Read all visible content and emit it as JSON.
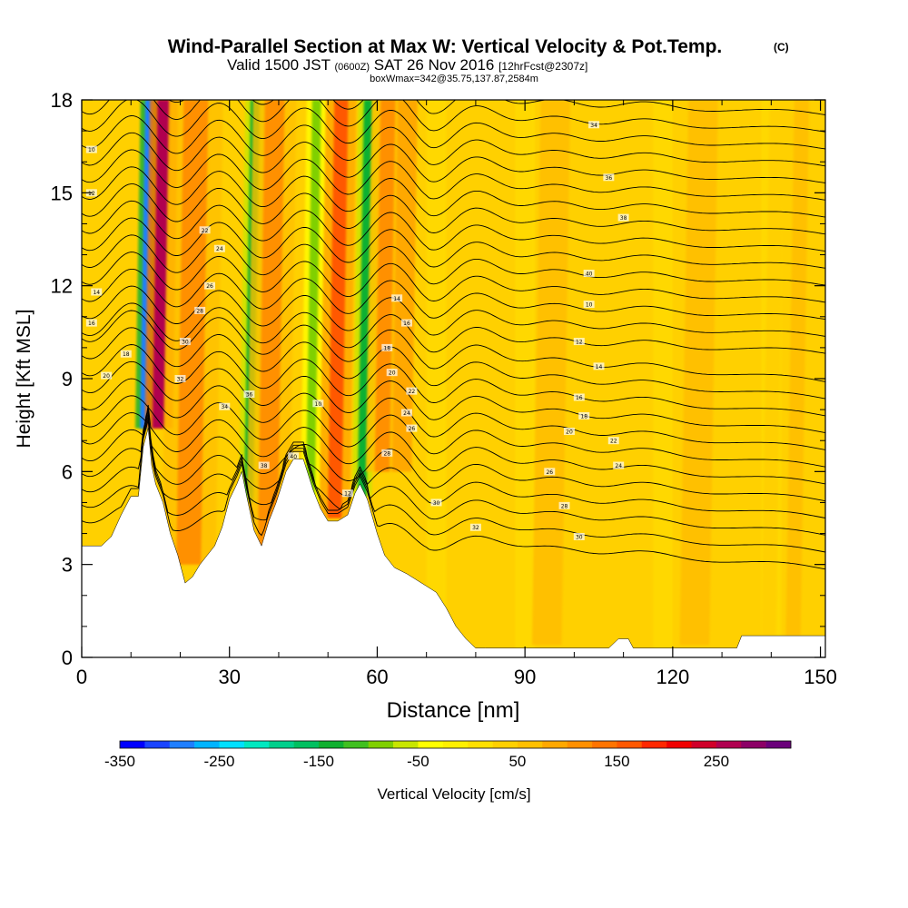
{
  "chart_data": {
    "type": "heatmap",
    "title": "Wind-Parallel Section at Max W: Vertical Velocity & Pot.Temp.",
    "title_mark": "(C)",
    "subtitle": {
      "prefix": "Valid 1500 JST",
      "utc": "(0600Z)",
      "date": "SAT 26 Nov 2016",
      "fcst": "[12hrFcst@2307z]"
    },
    "box_line": "boxWmax=342@35.75,137.87,2584m",
    "xlabel": "Distance [nm]",
    "ylabel": "Height [Kft MSL]",
    "xlim": [
      0,
      151
    ],
    "ylim": [
      0,
      18
    ],
    "x_ticks": [
      0,
      30,
      60,
      90,
      120,
      150
    ],
    "y_ticks": [
      0,
      3,
      6,
      9,
      12,
      15,
      18
    ],
    "background_w": 40,
    "plumes": [
      {
        "x": 12.5,
        "w": -300,
        "width": 1.6,
        "bottom": 7.4
      },
      {
        "x": 15.5,
        "w": 270,
        "width": 2.6,
        "bottom": 7.4
      },
      {
        "x": 22,
        "w": 110,
        "width": 5,
        "bottom": 3.0
      },
      {
        "x": 34,
        "w": -130,
        "width": 1.8,
        "bottom": 5.0
      },
      {
        "x": 38,
        "w": 120,
        "width": 4,
        "bottom": 3.5
      },
      {
        "x": 46.5,
        "w": -100,
        "width": 1.8,
        "bottom": 4.5
      },
      {
        "x": 51.5,
        "w": 170,
        "width": 2.8,
        "bottom": 4.5
      },
      {
        "x": 57,
        "w": -150,
        "width": 1.8,
        "bottom": 5.2
      },
      {
        "x": 61,
        "w": 110,
        "width": 3,
        "bottom": 6.0
      },
      {
        "x": 65,
        "w": 80,
        "width": 4,
        "bottom": 6.0
      },
      {
        "x": 95,
        "w": 60,
        "width": 6,
        "bottom": 0.4
      },
      {
        "x": 125,
        "w": 60,
        "width": 6,
        "bottom": 0.4
      },
      {
        "x": 140,
        "w": 30,
        "width": 3,
        "bottom": 0.7
      },
      {
        "x": 145,
        "w": 70,
        "width": 3,
        "bottom": 0.7
      }
    ],
    "terrain": [
      [
        0,
        3.6
      ],
      [
        4,
        3.6
      ],
      [
        6,
        3.9
      ],
      [
        8,
        4.6
      ],
      [
        10,
        5.2
      ],
      [
        11.5,
        5.2
      ],
      [
        12.5,
        6.8
      ],
      [
        13.5,
        7.4
      ],
      [
        14.2,
        6.2
      ],
      [
        15,
        5.6
      ],
      [
        16.5,
        5.0
      ],
      [
        18,
        4.0
      ],
      [
        19.5,
        3.3
      ],
      [
        21,
        2.4
      ],
      [
        22.5,
        2.6
      ],
      [
        24,
        3.0
      ],
      [
        25.5,
        3.3
      ],
      [
        27,
        3.6
      ],
      [
        28.5,
        4.2
      ],
      [
        30,
        5.1
      ],
      [
        31.5,
        5.6
      ],
      [
        32.5,
        6.0
      ],
      [
        33.5,
        5.2
      ],
      [
        35,
        4.1
      ],
      [
        36.5,
        3.6
      ],
      [
        38,
        4.4
      ],
      [
        39.5,
        5.0
      ],
      [
        41.5,
        6.0
      ],
      [
        43,
        6.4
      ],
      [
        45,
        6.4
      ],
      [
        47,
        5.4
      ],
      [
        48.5,
        4.8
      ],
      [
        50,
        4.4
      ],
      [
        52,
        4.4
      ],
      [
        54,
        4.6
      ],
      [
        55.5,
        5.3
      ],
      [
        56.5,
        5.6
      ],
      [
        58,
        5.1
      ],
      [
        60,
        4.0
      ],
      [
        61.5,
        3.3
      ],
      [
        63.5,
        2.9
      ],
      [
        66,
        2.7
      ],
      [
        70,
        2.3
      ],
      [
        72,
        2.1
      ],
      [
        74,
        1.6
      ],
      [
        76,
        1.0
      ],
      [
        78,
        0.6
      ],
      [
        80,
        0.3
      ],
      [
        82,
        0.3
      ],
      [
        107,
        0.3
      ],
      [
        109,
        0.6
      ],
      [
        111,
        0.6
      ],
      [
        112,
        0.3
      ],
      [
        133,
        0.3
      ],
      [
        134,
        0.7
      ],
      [
        151,
        0.7
      ]
    ],
    "theta_contours": {
      "lowest_height": 3.8,
      "spacing": 0.55,
      "count": 27,
      "labels": [
        "10",
        "12",
        "14",
        "16",
        "18",
        "20",
        "22",
        "24",
        "26",
        "28",
        "30",
        "32",
        "34",
        "36",
        "38",
        "40"
      ]
    },
    "colorbar": {
      "label": "Vertical Velocity [cm/s]",
      "min": -350,
      "max": 300,
      "step": 25,
      "tick_labels": [
        "-350",
        "-250",
        "-150",
        "-50",
        "50",
        "150",
        "250"
      ],
      "colors": [
        "#0000ff",
        "#1a44ff",
        "#1f7fff",
        "#00b4ff",
        "#00e0ff",
        "#00e8c0",
        "#00d08c",
        "#00c060",
        "#10b030",
        "#40c020",
        "#80d000",
        "#c8e600",
        "#ffff00",
        "#fff000",
        "#ffe000",
        "#ffd000",
        "#ffc000",
        "#ffa800",
        "#ff9000",
        "#ff7400",
        "#ff5800",
        "#ff2800",
        "#f00000",
        "#d0002a",
        "#b00050",
        "#8c0066",
        "#6a007a"
      ]
    }
  }
}
